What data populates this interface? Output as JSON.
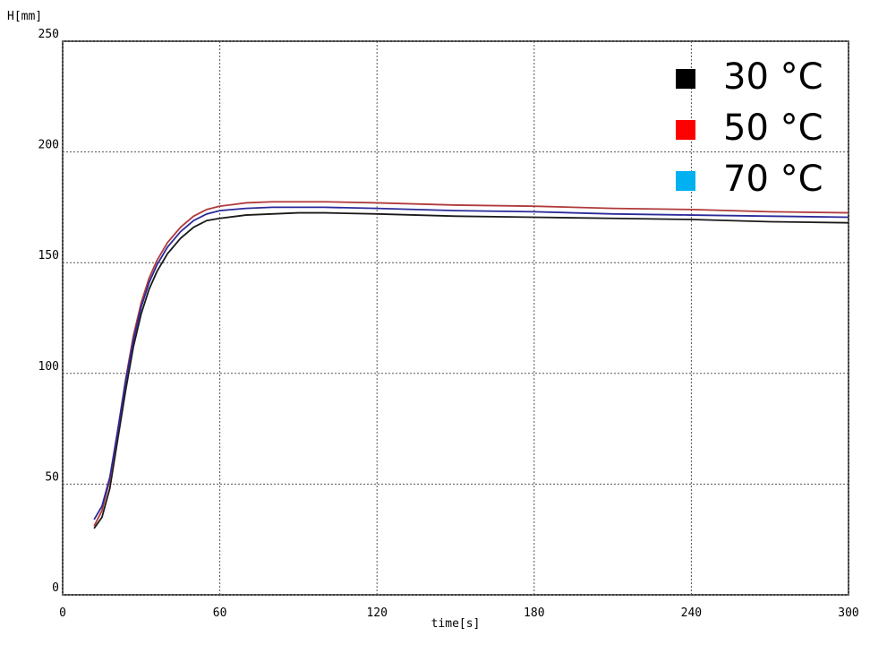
{
  "chart_data": {
    "type": "line",
    "x_label": "time[s]",
    "y_label": "H[mm]",
    "x": [
      12,
      15,
      18,
      21,
      24,
      27,
      30,
      33,
      36,
      40,
      45,
      50,
      55,
      60,
      70,
      80,
      90,
      100,
      120,
      150,
      180,
      210,
      240,
      270,
      300
    ],
    "series": [
      {
        "name": "30 °C",
        "color": "#1a1a1a",
        "legend_color": "#000000",
        "values": [
          30,
          35,
          48,
          70,
          92,
          112,
          127,
          138,
          146,
          154,
          161,
          166,
          169,
          170,
          171.5,
          172,
          172.5,
          172.5,
          172,
          171,
          170.5,
          170,
          169.5,
          168.5,
          168
        ]
      },
      {
        "name": "50 °C",
        "color": "#b03a3a",
        "legend_color": "#ff0000",
        "values": [
          31,
          38,
          52,
          74,
          97,
          117,
          132,
          143,
          151,
          159,
          166,
          171,
          174,
          175.5,
          177,
          177.5,
          177.5,
          177.5,
          177,
          176,
          175.5,
          174.5,
          174,
          173,
          172.5
        ]
      },
      {
        "name": "70 °C",
        "color": "#2a2a9a",
        "legend_color": "#00b0f0",
        "values": [
          34,
          40,
          53,
          74,
          96,
          115,
          130,
          141,
          149,
          157,
          164,
          169,
          172,
          173.5,
          174.5,
          175,
          175,
          175,
          174.5,
          173.5,
          173,
          172,
          171.5,
          171,
          170.5
        ]
      }
    ],
    "xlim": [
      0,
      300
    ],
    "xticks": [
      0,
      60,
      120,
      180,
      240,
      300
    ],
    "ylim": [
      0,
      250
    ],
    "yticks": [
      0,
      50,
      100,
      150,
      200,
      250
    ],
    "grid": true,
    "legend": "upper right"
  }
}
